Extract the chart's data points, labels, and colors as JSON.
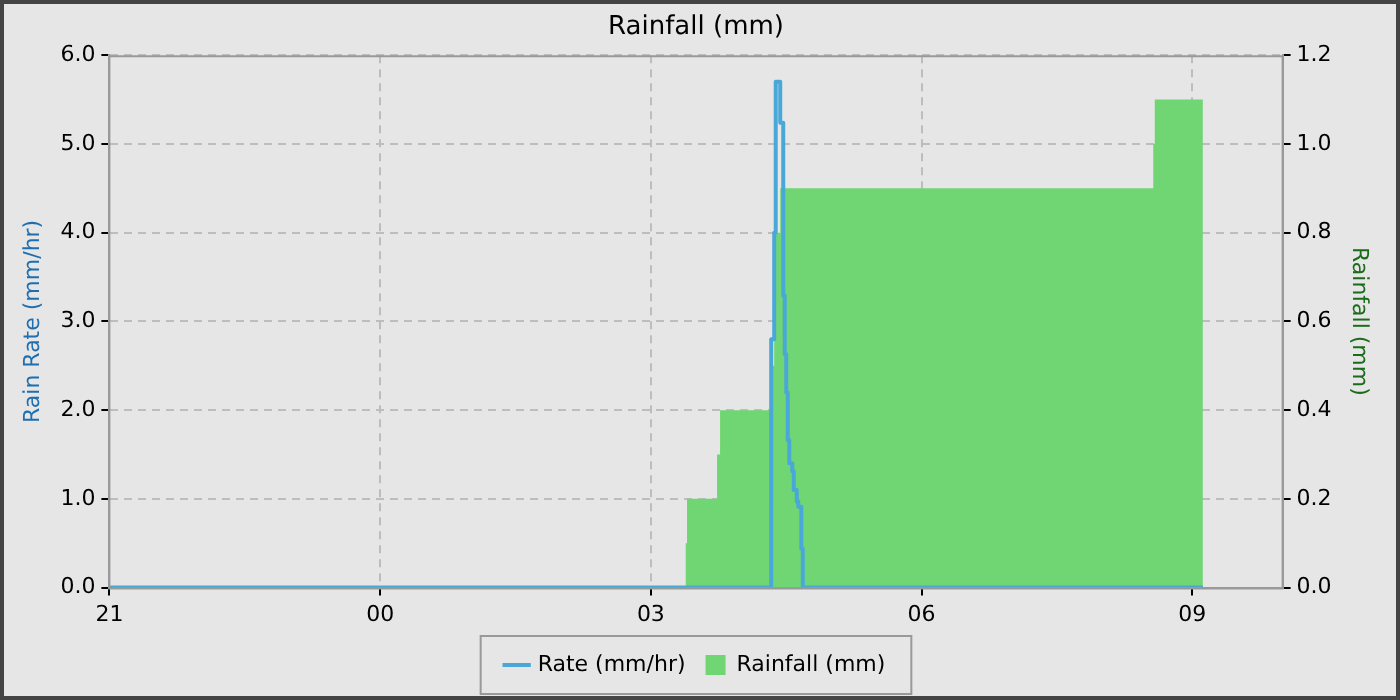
{
  "chart_data": {
    "type": "line",
    "title": "Rainfall (mm)",
    "ylabel": "Rain Rate (mm/hr)",
    "y2label": "Rainfall (mm)",
    "xlim": [
      "2000-01-01T21:00",
      "2000-01-02T10:00"
    ],
    "xticks": [
      {
        "value": "2000-01-01T21:00",
        "label": "21"
      },
      {
        "value": "2000-01-02T00:00",
        "label": "00"
      },
      {
        "value": "2000-01-02T03:00",
        "label": "03"
      },
      {
        "value": "2000-01-02T06:00",
        "label": "06"
      },
      {
        "value": "2000-01-02T09:00",
        "label": "09"
      }
    ],
    "ylim": [
      0,
      6
    ],
    "yticks": [
      {
        "value": 0,
        "label": "0.0"
      },
      {
        "value": 1,
        "label": "1.0"
      },
      {
        "value": 2,
        "label": "2.0"
      },
      {
        "value": 3,
        "label": "3.0"
      },
      {
        "value": 4,
        "label": "4.0"
      },
      {
        "value": 5,
        "label": "5.0"
      },
      {
        "value": 6,
        "label": "6.0"
      }
    ],
    "y2lim": [
      0,
      1.2
    ],
    "y2ticks": [
      {
        "value": 0,
        "label": "0.0"
      },
      {
        "value": 0.2,
        "label": "0.2"
      },
      {
        "value": 0.4,
        "label": "0.4"
      },
      {
        "value": 0.6,
        "label": "0.6"
      },
      {
        "value": 0.8,
        "label": "0.8"
      },
      {
        "value": 1,
        "label": "1.0"
      },
      {
        "value": 1.2,
        "label": "1.2"
      }
    ],
    "grid": true,
    "legend": "bottom",
    "line_style": "solid",
    "marker": "none",
    "series": [
      {
        "name": "Rate (mm/hr)",
        "type": "step",
        "axis": "y",
        "color": "#4aa8d8",
        "x": [
          "2000-01-01T21:00",
          "2000-01-02T04:20",
          "2000-01-02T04:22",
          "2000-01-02T04:23",
          "2000-01-02T04:26",
          "2000-01-02T04:28",
          "2000-01-02T04:29",
          "2000-01-02T04:30",
          "2000-01-02T04:31",
          "2000-01-02T04:32",
          "2000-01-02T04:34",
          "2000-01-02T04:35",
          "2000-01-02T04:37",
          "2000-01-02T04:38",
          "2000-01-02T04:40",
          "2000-01-02T04:41",
          "2000-01-02T09:07"
        ],
        "values": [
          0,
          2.8,
          4.0,
          5.7,
          5.24,
          3.29,
          2.63,
          2.2,
          1.66,
          1.4,
          1.31,
          1.1,
          0.97,
          0.91,
          0.44,
          0,
          0
        ]
      },
      {
        "name": "Rainfall (mm)",
        "type": "area",
        "axis": "y2",
        "color": "#6fd673",
        "x": [
          "2000-01-02T03:23",
          "2000-01-02T03:24",
          "2000-01-02T03:44",
          "2000-01-02T03:46",
          "2000-01-02T04:20",
          "2000-01-02T04:22",
          "2000-01-02T04:26",
          "2000-01-02T08:34",
          "2000-01-02T08:35",
          "2000-01-02T09:07"
        ],
        "values": [
          0.1,
          0.2,
          0.3,
          0.4,
          0.5,
          0.8,
          0.9,
          1.0,
          1.1,
          1.1
        ]
      }
    ]
  }
}
